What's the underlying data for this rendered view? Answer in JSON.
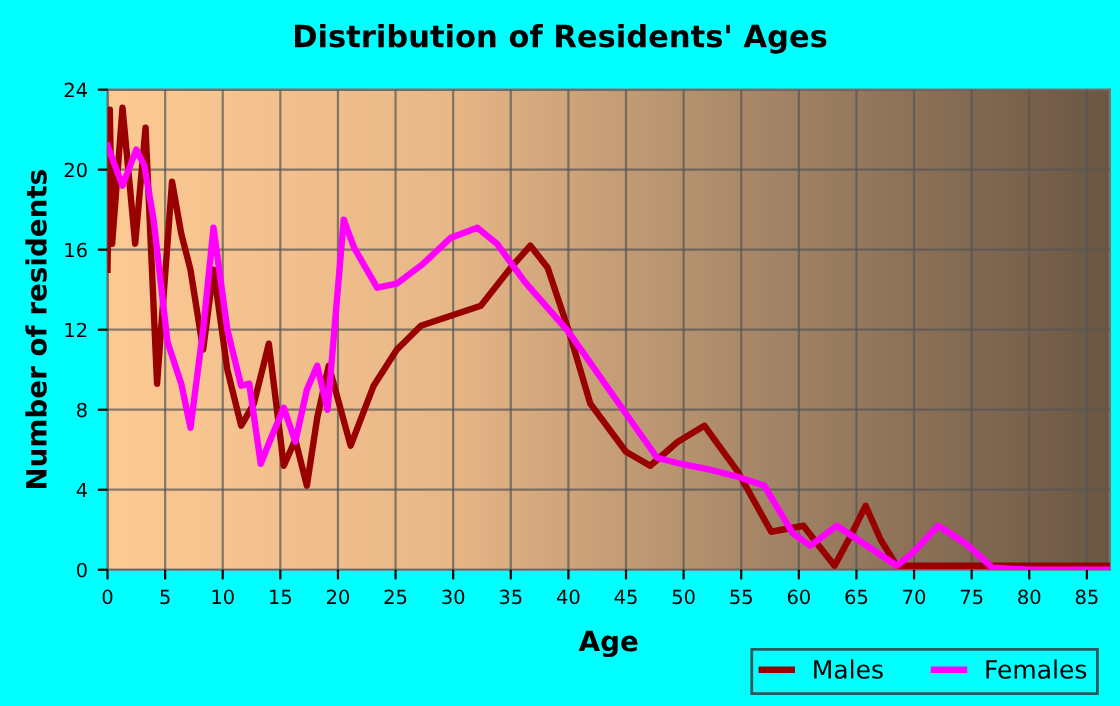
{
  "chart_data": {
    "type": "line",
    "title": "Distribution of Residents' Ages",
    "xlabel": "Age",
    "ylabel": "Number of residents",
    "xlim": [
      0,
      87
    ],
    "xticks": [
      0,
      5,
      10,
      15,
      20,
      25,
      30,
      35,
      40,
      45,
      50,
      55,
      60,
      65,
      70,
      75,
      80,
      85
    ],
    "ylim": [
      0,
      24
    ],
    "yticks": [
      0,
      4,
      8,
      12,
      16,
      20,
      24
    ],
    "grid": true,
    "legend": "bottom right",
    "marker": "none",
    "line_style": "solid",
    "series": [
      {
        "name": "Males",
        "color": "#990000",
        "x": [
          0,
          0.2,
          0.4,
          1.3,
          2.4,
          3.3,
          4.3,
          5.6,
          6.4,
          7.2,
          8.3,
          9.2,
          10.4,
          11.6,
          12.7,
          14,
          15.3,
          16.3,
          17.3,
          18.2,
          19.2,
          21.1,
          23.1,
          25.1,
          27.2,
          29.8,
          32.4,
          35,
          36.7,
          38.2,
          40,
          41.9,
          45,
          47.1,
          49.5,
          51.8,
          54.7,
          57.6,
          60.4,
          61.6,
          63.1,
          64.5,
          65.8,
          67.1,
          68.5,
          75,
          87
        ],
        "values": [
          15,
          23,
          16.3,
          23.1,
          16.3,
          22.1,
          9.3,
          19.4,
          16.8,
          15,
          11,
          15,
          10,
          7.2,
          8.3,
          11.3,
          5.2,
          6.5,
          4.2,
          7.6,
          10.2,
          6.2,
          9.2,
          11,
          12.2,
          12.7,
          13.2,
          15.1,
          16.2,
          15.1,
          12,
          8.3,
          5.9,
          5.2,
          6.4,
          7.2,
          4.9,
          1.9,
          2.2,
          1.3,
          0.2,
          1.7,
          3.2,
          1.5,
          0.2,
          0.2,
          0.2
        ]
      },
      {
        "name": "Females",
        "color": "#ff00ff",
        "x": [
          0,
          1.3,
          2.5,
          3.2,
          4.0,
          5.2,
          6.4,
          7.2,
          8.3,
          9.2,
          10.4,
          11.6,
          12.3,
          13.3,
          14.2,
          15.3,
          16.3,
          17.3,
          18.2,
          19.1,
          20.5,
          21.4,
          23.4,
          25.1,
          27.4,
          29.8,
          32.1,
          33.8,
          36.2,
          40,
          45,
          47.7,
          49.7,
          52.3,
          54.7,
          57,
          59.5,
          61,
          63.3,
          65.9,
          68.5,
          69.8,
          72.1,
          74.5,
          76.8,
          80,
          87
        ],
        "values": [
          21.2,
          19.2,
          21,
          20.2,
          17.5,
          11.4,
          9.3,
          7.1,
          12,
          17.1,
          12,
          9.2,
          9.3,
          5.3,
          6.6,
          8.1,
          6.4,
          9,
          10.2,
          8,
          17.5,
          16.1,
          14.1,
          14.3,
          15.3,
          16.6,
          17.1,
          16.3,
          14.4,
          11.9,
          7.8,
          5.6,
          5.3,
          5.0,
          4.65,
          4.2,
          1.8,
          1.2,
          2.2,
          1.2,
          0.2,
          0.8,
          2.2,
          1.3,
          0.1,
          0,
          0
        ]
      }
    ]
  }
}
